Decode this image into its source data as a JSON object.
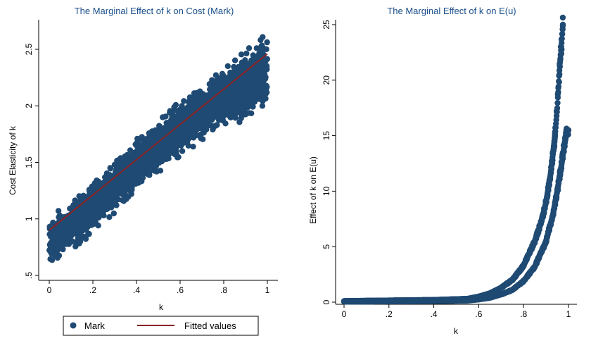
{
  "colors": {
    "marker": "#1f4a73",
    "fitted": "#8b2323",
    "title": "#1a4f8b",
    "axis": "#000000",
    "legend_border": "#000000"
  },
  "chart_data": [
    {
      "type": "scatter",
      "title": "The Marginal Effect of k on Cost (Mark)",
      "xlabel": "k",
      "ylabel": "Cost Elasticity of k",
      "xlim": [
        0,
        1
      ],
      "ylim": [
        0.5,
        2.7
      ],
      "xticks": [
        "0",
        ".2",
        ".4",
        ".6",
        ".8",
        "1"
      ],
      "xtick_values": [
        0,
        0.2,
        0.4,
        0.6,
        0.8,
        1
      ],
      "yticks": [
        ".5",
        "1",
        "1.5",
        "2",
        "2.5"
      ],
      "ytick_values": [
        0.5,
        1,
        1.5,
        2,
        2.5
      ],
      "series": [
        {
          "name": "Mark",
          "kind": "scatter-band",
          "description": "dense scatter band around fitted line",
          "band": [
            {
              "x": 0.0,
              "low": 0.52,
              "high": 1.07
            },
            {
              "x": 0.1,
              "low": 0.65,
              "high": 1.2
            },
            {
              "x": 0.2,
              "low": 0.82,
              "high": 1.38
            },
            {
              "x": 0.3,
              "low": 1.0,
              "high": 1.56
            },
            {
              "x": 0.4,
              "low": 1.18,
              "high": 1.74
            },
            {
              "x": 0.5,
              "low": 1.36,
              "high": 1.9
            },
            {
              "x": 0.6,
              "low": 1.52,
              "high": 2.08
            },
            {
              "x": 0.7,
              "low": 1.66,
              "high": 2.22
            },
            {
              "x": 0.8,
              "low": 1.78,
              "high": 2.4
            },
            {
              "x": 0.9,
              "low": 1.82,
              "high": 2.55
            },
            {
              "x": 1.0,
              "low": 1.9,
              "high": 2.72
            }
          ]
        },
        {
          "name": "Fitted values",
          "kind": "line",
          "x": [
            0,
            1
          ],
          "y": [
            0.9,
            2.46
          ]
        }
      ],
      "legend": {
        "position": "bottom",
        "entries": [
          "Mark",
          "Fitted values"
        ]
      }
    },
    {
      "type": "scatter",
      "title": "The Marginal Effect of k on E(u)",
      "xlabel": "k",
      "ylabel": "Effect of k on E(u)",
      "xlim": [
        0,
        1
      ],
      "ylim": [
        0,
        25
      ],
      "xticks": [
        "0",
        ".2",
        ".4",
        ".6",
        ".8",
        "1"
      ],
      "xtick_values": [
        0,
        0.2,
        0.4,
        0.6,
        0.8,
        1
      ],
      "yticks": [
        "0",
        "5",
        "10",
        "15",
        "20",
        "25"
      ],
      "ytick_values": [
        0,
        5,
        10,
        15,
        20,
        25
      ],
      "series": [
        {
          "kind": "scatter-curve",
          "description": "upper curve",
          "x": [
            0,
            0.4,
            0.55,
            0.6,
            0.65,
            0.7,
            0.75,
            0.8,
            0.85,
            0.88,
            0.9,
            0.92,
            0.94,
            0.95,
            0.96,
            0.97,
            0.975
          ],
          "y": [
            0.1,
            0.2,
            0.3,
            0.5,
            0.8,
            1.3,
            2.0,
            3.3,
            5.5,
            7.3,
            9.0,
            11.5,
            15.0,
            17.5,
            21.0,
            23.5,
            25.0
          ]
        },
        {
          "kind": "scatter-curve",
          "description": "lower curve",
          "x": [
            0,
            0.4,
            0.55,
            0.6,
            0.65,
            0.7,
            0.75,
            0.8,
            0.85,
            0.9,
            0.93,
            0.95,
            0.97,
            0.98,
            0.99,
            1.0
          ],
          "y": [
            0.05,
            0.1,
            0.15,
            0.25,
            0.4,
            0.7,
            1.1,
            1.9,
            3.2,
            5.5,
            7.8,
            10.0,
            12.5,
            14.0,
            15.2,
            15.5
          ]
        }
      ]
    }
  ]
}
